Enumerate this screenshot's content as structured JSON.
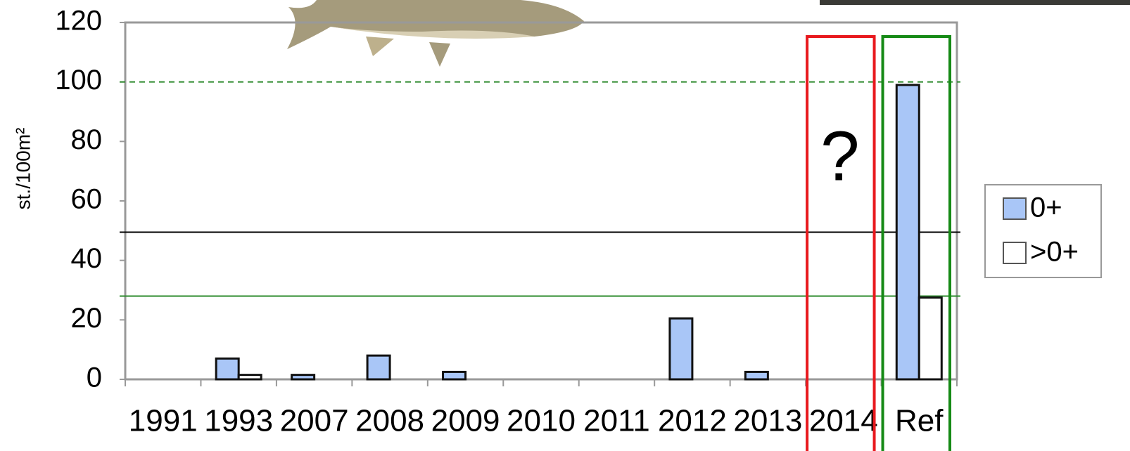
{
  "chart_data": {
    "type": "bar",
    "y_label": "st./100m²",
    "categories": [
      "1991",
      "1993",
      "2007",
      "2008",
      "2009",
      "2010",
      "2011",
      "2012",
      "2013",
      "2014",
      "Ref"
    ],
    "series": [
      {
        "name": "0+",
        "color": "#a9c6f7",
        "values": [
          0,
          7,
          1.5,
          8,
          2.5,
          0,
          0,
          20.5,
          2.5,
          0,
          99
        ]
      },
      {
        "name": ">0+",
        "color": "#ffffff",
        "values": [
          0,
          1.5,
          0,
          0,
          0,
          0,
          0,
          0,
          0,
          0,
          27.5
        ]
      }
    ],
    "ylim": [
      0,
      120
    ],
    "yticks": [
      0,
      20,
      40,
      60,
      80,
      100,
      120
    ],
    "reference_lines": [
      {
        "value": 100,
        "color": "#2e8b2e",
        "dashed": true
      },
      {
        "value": 49.5,
        "color": "#000000",
        "dashed": false
      },
      {
        "value": 28,
        "color": "#2e8b2e",
        "dashed": false
      }
    ],
    "annotation": "?",
    "legend": "right"
  }
}
